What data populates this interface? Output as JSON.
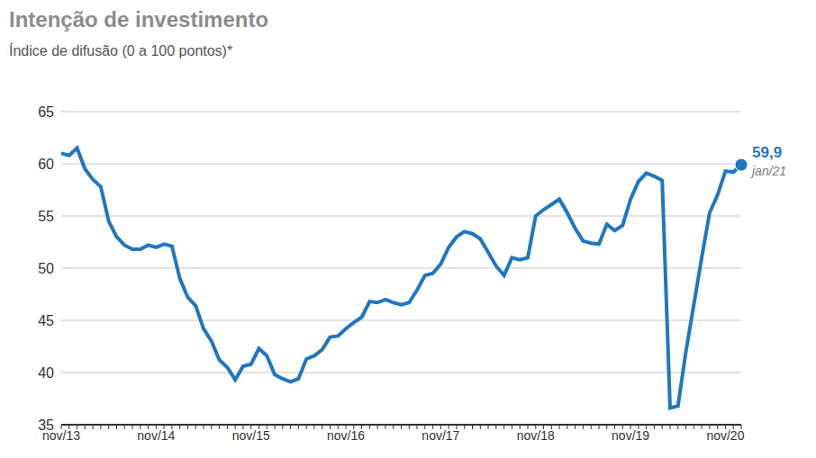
{
  "chart_data": {
    "type": "line",
    "title": "Intenção de investimento",
    "subtitle": "Índice de difusão (0 a 100 pontos)*",
    "categories": [
      "nov/13",
      null,
      null,
      null,
      null,
      null,
      null,
      null,
      null,
      null,
      null,
      null,
      "nov/14",
      null,
      null,
      null,
      null,
      null,
      null,
      null,
      null,
      null,
      null,
      null,
      "nov/15",
      null,
      null,
      null,
      null,
      null,
      null,
      null,
      null,
      null,
      null,
      null,
      "nov/16",
      null,
      null,
      null,
      null,
      null,
      null,
      null,
      null,
      null,
      null,
      null,
      "nov/17",
      null,
      null,
      null,
      null,
      null,
      null,
      null,
      null,
      null,
      null,
      null,
      "nov/18",
      null,
      null,
      null,
      null,
      null,
      null,
      null,
      null,
      null,
      null,
      null,
      "nov/19",
      null,
      null,
      null,
      null,
      null,
      null,
      null,
      null,
      null,
      null,
      null,
      "nov/20",
      null,
      null
    ],
    "values": [
      61.0,
      60.8,
      61.5,
      59.5,
      58.5,
      57.8,
      54.5,
      53.0,
      52.2,
      51.8,
      51.8,
      52.2,
      52.0,
      52.3,
      52.1,
      49.0,
      47.2,
      46.4,
      44.2,
      43.0,
      41.2,
      40.5,
      39.3,
      40.6,
      40.8,
      42.3,
      41.6,
      39.8,
      39.4,
      39.1,
      39.4,
      41.3,
      41.6,
      42.2,
      43.4,
      43.5,
      44.2,
      44.8,
      45.3,
      46.8,
      46.7,
      47.0,
      46.7,
      46.5,
      46.7,
      47.9,
      49.3,
      49.5,
      50.4,
      52.0,
      53.0,
      53.5,
      53.3,
      52.8,
      51.5,
      50.2,
      49.3,
      51.0,
      50.8,
      51.0,
      55.0,
      55.6,
      56.1,
      56.6,
      55.3,
      53.8,
      52.6,
      52.4,
      52.3,
      54.2,
      53.6,
      54.1,
      56.6,
      58.3,
      59.1,
      58.8,
      58.4,
      36.6,
      36.8,
      42.0,
      46.5,
      51.0,
      55.3,
      57.0,
      59.3,
      59.2,
      59.9
    ],
    "value_labels": [
      null,
      null,
      null,
      null,
      null,
      null,
      null,
      null,
      null,
      null,
      null,
      null,
      null,
      null,
      null,
      null,
      null,
      null,
      null,
      null,
      null,
      null,
      null,
      null,
      null,
      null,
      null,
      null,
      null,
      null,
      null,
      null,
      null,
      null,
      null,
      null,
      null,
      null,
      null,
      null,
      null,
      null,
      null,
      null,
      null,
      null,
      null,
      null,
      null,
      null,
      null,
      null,
      null,
      null,
      null,
      null,
      null,
      null,
      null,
      null,
      null,
      null,
      null,
      null,
      null,
      null,
      null,
      null,
      null,
      null,
      null,
      null,
      null,
      null,
      null,
      null,
      null,
      null,
      null,
      null,
      null,
      null,
      null,
      null,
      null,
      null,
      "59,9"
    ],
    "annotations": [
      "jan/21"
    ],
    "color": "#1f77c0",
    "ylim": [
      35,
      65
    ],
    "yticks": [
      35,
      40,
      45,
      50,
      55,
      60,
      65
    ],
    "grid": true
  }
}
